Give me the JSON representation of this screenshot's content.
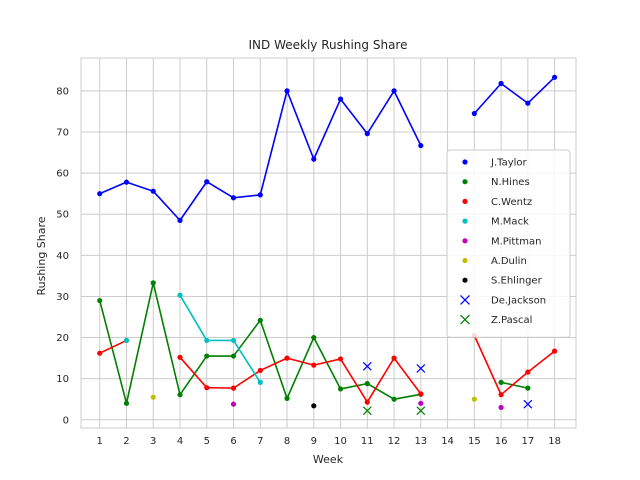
{
  "chart_data": {
    "type": "line",
    "title": "IND Weekly Rushing Share",
    "xlabel": "Week",
    "ylabel": "Rushing Share",
    "x": [
      1,
      2,
      3,
      4,
      5,
      6,
      7,
      8,
      9,
      10,
      11,
      12,
      13,
      14,
      15,
      16,
      17,
      18
    ],
    "xlim": [
      0.3,
      18.8
    ],
    "ylim": [
      -2,
      88
    ],
    "yticks": [
      0,
      10,
      20,
      30,
      40,
      50,
      60,
      70,
      80
    ],
    "grid": true,
    "legend_position": "right",
    "series": [
      {
        "name": "J.Taylor",
        "color": "#0000ff",
        "marker": "dot",
        "line": true,
        "values": [
          55.0,
          57.8,
          55.6,
          48.5,
          57.9,
          54.0,
          54.7,
          80.0,
          63.4,
          78.0,
          69.6,
          80.0,
          66.7,
          null,
          74.5,
          81.8,
          77.0,
          83.3
        ]
      },
      {
        "name": "N.Hines",
        "color": "#008000",
        "marker": "dot",
        "line": true,
        "values": [
          29.0,
          4.0,
          33.3,
          6.1,
          15.5,
          15.5,
          24.2,
          5.2,
          20.0,
          7.5,
          8.8,
          5.0,
          6.2,
          null,
          null,
          9.1,
          7.7,
          null
        ]
      },
      {
        "name": "C.Wentz",
        "color": "#ff0000",
        "marker": "dot",
        "line": true,
        "values": [
          16.2,
          19.3,
          null,
          15.2,
          7.8,
          7.7,
          12.0,
          15.0,
          13.3,
          14.8,
          4.3,
          15.0,
          6.3,
          null,
          20.5,
          6.1,
          11.6,
          16.7
        ]
      },
      {
        "name": "M.Mack",
        "color": "#00bfbf",
        "marker": "dot",
        "line": true,
        "values": [
          null,
          19.3,
          null,
          30.3,
          19.3,
          19.3,
          9.1,
          null,
          null,
          null,
          null,
          null,
          null,
          null,
          null,
          null,
          null,
          null
        ]
      },
      {
        "name": "M.Pittman",
        "color": "#bf00bf",
        "marker": "dot",
        "line": true,
        "values": [
          null,
          null,
          null,
          null,
          null,
          3.8,
          null,
          null,
          null,
          null,
          null,
          null,
          4.0,
          null,
          null,
          3.0,
          null,
          null
        ]
      },
      {
        "name": "A.Dulin",
        "color": "#bfbf00",
        "marker": "dot",
        "line": true,
        "values": [
          null,
          null,
          5.5,
          null,
          null,
          null,
          null,
          null,
          null,
          null,
          null,
          null,
          null,
          null,
          5.0,
          null,
          null,
          null
        ]
      },
      {
        "name": "S.Ehlinger",
        "color": "#000000",
        "marker": "dot",
        "line": true,
        "values": [
          null,
          null,
          null,
          null,
          null,
          null,
          null,
          null,
          3.4,
          null,
          null,
          null,
          null,
          null,
          null,
          null,
          null,
          null
        ]
      },
      {
        "name": "De.Jackson",
        "color": "#0000ff",
        "marker": "x",
        "line": false,
        "values": [
          null,
          null,
          null,
          null,
          null,
          null,
          null,
          null,
          null,
          null,
          13.0,
          null,
          12.5,
          null,
          null,
          null,
          3.8,
          null
        ]
      },
      {
        "name": "Z.Pascal",
        "color": "#008000",
        "marker": "x",
        "line": false,
        "values": [
          null,
          null,
          null,
          null,
          null,
          null,
          null,
          null,
          null,
          null,
          2.2,
          null,
          2.2,
          null,
          null,
          null,
          null,
          null
        ]
      }
    ]
  }
}
